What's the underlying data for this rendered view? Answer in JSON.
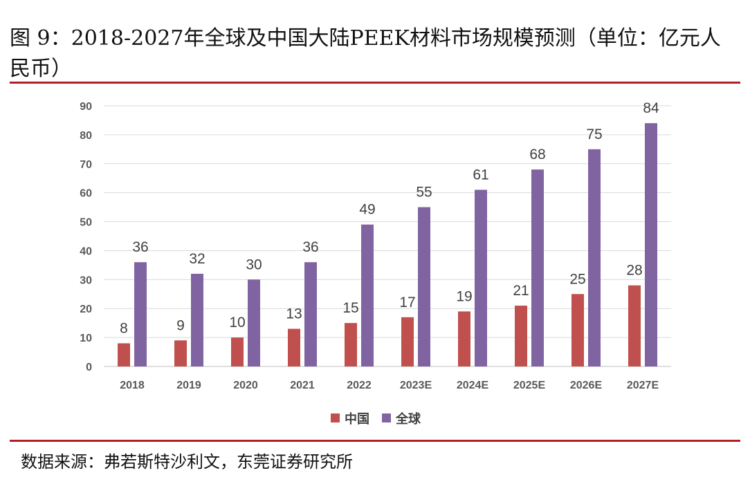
{
  "title": "图 9：2018-2027年全球及中国大陆PEEK材料市场规模预测（单位：亿元人民币）",
  "source": "数据来源：弗若斯特沙利文，东莞证券研究所",
  "chart_data": {
    "type": "bar",
    "categories": [
      "2018",
      "2019",
      "2020",
      "2021",
      "2022",
      "2023E",
      "2024E",
      "2025E",
      "2026E",
      "2027E"
    ],
    "series": [
      {
        "name": "中国",
        "color": "#c0504d",
        "values": [
          8,
          9,
          10,
          13,
          15,
          17,
          19,
          21,
          25,
          28
        ]
      },
      {
        "name": "全球",
        "color": "#8064a2",
        "values": [
          36,
          32,
          30,
          36,
          49,
          55,
          61,
          68,
          75,
          84
        ]
      }
    ],
    "yticks": [
      0,
      10,
      20,
      30,
      40,
      50,
      60,
      70,
      80,
      90
    ],
    "ylim": [
      0,
      90
    ],
    "grid": true,
    "legend": "bottom"
  }
}
